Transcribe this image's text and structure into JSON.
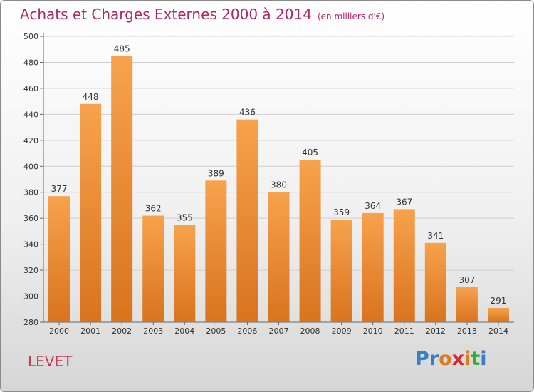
{
  "title": "Achats et Charges Externes 2000 à 2014",
  "unit_label": "(en milliers d'€)",
  "commune": "LEVET",
  "logo": {
    "text": "Proxiti",
    "colors": [
      "#3a7fc4",
      "#3a7fc4",
      "#e07a20",
      "#d62a2a",
      "#e07a20",
      "#3aa83a",
      "#3a7fc4"
    ]
  },
  "colors": {
    "bar_top": "#f7a24c",
    "bar_bottom": "#d9731e",
    "title": "#b5265f"
  },
  "chart_data": {
    "type": "bar",
    "title": "Achats et Charges Externes 2000 à 2014",
    "categories": [
      "2000",
      "2001",
      "2002",
      "2003",
      "2004",
      "2005",
      "2006",
      "2007",
      "2008",
      "2009",
      "2010",
      "2011",
      "2012",
      "2013",
      "2014"
    ],
    "values": [
      377,
      448,
      485,
      362,
      355,
      389,
      436,
      380,
      405,
      359,
      364,
      367,
      341,
      307,
      291
    ],
    "ylim": [
      280,
      500
    ],
    "yticks": [
      280,
      300,
      320,
      340,
      360,
      380,
      400,
      420,
      440,
      460,
      480,
      500
    ],
    "grid": true,
    "xlabel": "",
    "ylabel": ""
  }
}
